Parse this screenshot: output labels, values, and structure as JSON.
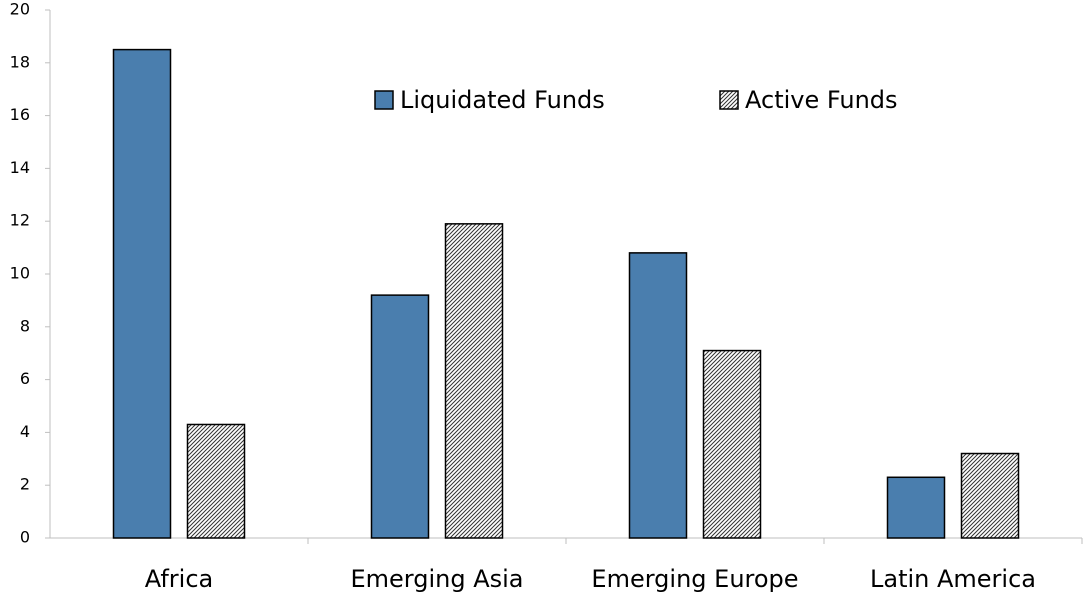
{
  "chart_data": {
    "type": "bar",
    "categories": [
      "Africa",
      "Emerging Asia",
      "Emerging Europe",
      "Latin America"
    ],
    "series": [
      {
        "name": "Liquidated Funds",
        "color": "#4a7eae",
        "hatch": false,
        "values": [
          18.5,
          9.2,
          10.8,
          2.3
        ]
      },
      {
        "name": "Active Funds",
        "color": "#222222",
        "hatch": true,
        "values": [
          4.3,
          11.9,
          7.1,
          3.2
        ]
      }
    ],
    "ylim": [
      0,
      20
    ],
    "yticks": [
      0,
      2,
      4,
      6,
      8,
      10,
      12,
      14,
      16,
      18,
      20
    ],
    "grid": false,
    "legend": "top"
  }
}
